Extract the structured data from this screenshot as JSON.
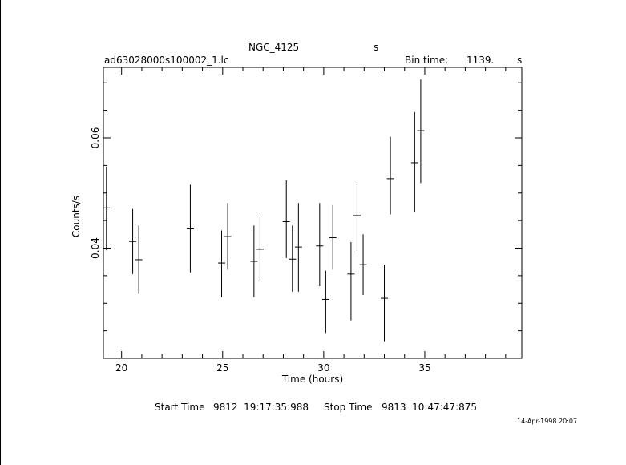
{
  "header": {
    "object": "NGC_4125",
    "object_suffix": "s",
    "file": "ad63028000s100002_1.lc",
    "bin_label": "Bin time:",
    "bin_value": "1139.",
    "bin_unit": "s"
  },
  "footer": {
    "start_label": "Start Time",
    "start_value": "9812  19:17:35:988",
    "stop_label": "Stop Time",
    "stop_value": "9813  10:47:47:875",
    "stamp": "14-Apr-1998 20:07"
  },
  "chart_data": {
    "type": "scatter",
    "xlabel": "Time (hours)",
    "ylabel": "Counts/s",
    "xlim": [
      19.1,
      39.8
    ],
    "ylim": [
      0.02,
      0.0728
    ],
    "x_ticks": [
      "20",
      "25",
      "30",
      "35"
    ],
    "y_ticks": [
      "0.04",
      "0.06"
    ],
    "x_tick_values": [
      20,
      25,
      30,
      35
    ],
    "y_tick_values": [
      0.04,
      0.06
    ],
    "x_minor": 1,
    "y_minor": 0.005,
    "points": [
      {
        "x": 19.25,
        "y": 0.0473,
        "ylo": 0.0396,
        "yhi": 0.0548
      },
      {
        "x": 20.55,
        "y": 0.0412,
        "ylo": 0.0353,
        "yhi": 0.0471
      },
      {
        "x": 20.85,
        "y": 0.0379,
        "ylo": 0.0317,
        "yhi": 0.0441
      },
      {
        "x": 23.4,
        "y": 0.0435,
        "ylo": 0.0356,
        "yhi": 0.0515
      },
      {
        "x": 24.95,
        "y": 0.0373,
        "ylo": 0.0311,
        "yhi": 0.0432
      },
      {
        "x": 25.25,
        "y": 0.0421,
        "ylo": 0.0361,
        "yhi": 0.0482
      },
      {
        "x": 26.55,
        "y": 0.0376,
        "ylo": 0.0311,
        "yhi": 0.0441
      },
      {
        "x": 26.85,
        "y": 0.0398,
        "ylo": 0.0341,
        "yhi": 0.0456
      },
      {
        "x": 28.15,
        "y": 0.0448,
        "ylo": 0.0382,
        "yhi": 0.0523
      },
      {
        "x": 28.45,
        "y": 0.038,
        "ylo": 0.0321,
        "yhi": 0.0441
      },
      {
        "x": 28.75,
        "y": 0.0402,
        "ylo": 0.0321,
        "yhi": 0.0482
      },
      {
        "x": 29.8,
        "y": 0.0404,
        "ylo": 0.0331,
        "yhi": 0.0482
      },
      {
        "x": 30.1,
        "y": 0.0307,
        "ylo": 0.0246,
        "yhi": 0.0359
      },
      {
        "x": 30.45,
        "y": 0.0419,
        "ylo": 0.0361,
        "yhi": 0.0478
      },
      {
        "x": 31.35,
        "y": 0.0353,
        "ylo": 0.0269,
        "yhi": 0.0411
      },
      {
        "x": 31.65,
        "y": 0.0459,
        "ylo": 0.039,
        "yhi": 0.0523
      },
      {
        "x": 31.95,
        "y": 0.037,
        "ylo": 0.0315,
        "yhi": 0.0425
      },
      {
        "x": 33.0,
        "y": 0.0309,
        "ylo": 0.0231,
        "yhi": 0.037
      },
      {
        "x": 33.3,
        "y": 0.0526,
        "ylo": 0.0461,
        "yhi": 0.0602
      },
      {
        "x": 34.5,
        "y": 0.0555,
        "ylo": 0.0466,
        "yhi": 0.0647
      },
      {
        "x": 34.8,
        "y": 0.0613,
        "ylo": 0.0518,
        "yhi": 0.0706
      }
    ]
  }
}
